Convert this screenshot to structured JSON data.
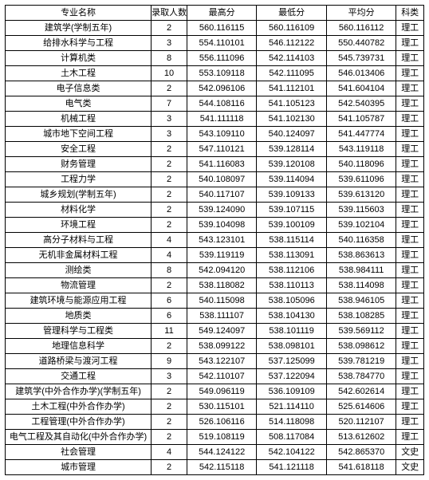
{
  "headers": [
    "专业名称",
    "录取人数",
    "最高分",
    "最低分",
    "平均分",
    "科类"
  ],
  "rows": [
    [
      "建筑学(学制五年)",
      "2",
      "560.116115",
      "560.116109",
      "560.116112",
      "理工"
    ],
    [
      "给排水科学与工程",
      "3",
      "554.110101",
      "546.112122",
      "550.440782",
      "理工"
    ],
    [
      "计算机类",
      "8",
      "556.111096",
      "542.114103",
      "545.739731",
      "理工"
    ],
    [
      "土木工程",
      "10",
      "553.109118",
      "542.111095",
      "546.013406",
      "理工"
    ],
    [
      "电子信息类",
      "2",
      "542.096106",
      "541.112101",
      "541.604104",
      "理工"
    ],
    [
      "电气类",
      "7",
      "544.108116",
      "541.105123",
      "542.540395",
      "理工"
    ],
    [
      "机械工程",
      "3",
      "541.111118",
      "541.102130",
      "541.105787",
      "理工"
    ],
    [
      "城市地下空间工程",
      "3",
      "543.109110",
      "540.124097",
      "541.447774",
      "理工"
    ],
    [
      "安全工程",
      "2",
      "547.110121",
      "539.128114",
      "543.119118",
      "理工"
    ],
    [
      "财务管理",
      "2",
      "541.116083",
      "539.120108",
      "540.118096",
      "理工"
    ],
    [
      "工程力学",
      "2",
      "540.108097",
      "539.114094",
      "539.611096",
      "理工"
    ],
    [
      "城乡规划(学制五年)",
      "2",
      "540.117107",
      "539.109133",
      "539.613120",
      "理工"
    ],
    [
      "材料化学",
      "2",
      "539.124090",
      "539.107115",
      "539.115603",
      "理工"
    ],
    [
      "环境工程",
      "2",
      "539.104098",
      "539.100109",
      "539.102104",
      "理工"
    ],
    [
      "高分子材料与工程",
      "4",
      "543.123101",
      "538.115114",
      "540.116358",
      "理工"
    ],
    [
      "无机非金属材料工程",
      "4",
      "539.119119",
      "538.113091",
      "538.863613",
      "理工"
    ],
    [
      "测绘类",
      "8",
      "542.094120",
      "538.112106",
      "538.984111",
      "理工"
    ],
    [
      "物流管理",
      "2",
      "538.118082",
      "538.110113",
      "538.114098",
      "理工"
    ],
    [
      "建筑环境与能源应用工程",
      "6",
      "540.115098",
      "538.105096",
      "538.946105",
      "理工"
    ],
    [
      "地质类",
      "6",
      "538.111107",
      "538.104130",
      "538.108285",
      "理工"
    ],
    [
      "管理科学与工程类",
      "11",
      "549.124097",
      "538.101119",
      "539.569112",
      "理工"
    ],
    [
      "地理信息科学",
      "2",
      "538.099122",
      "538.098101",
      "538.098612",
      "理工"
    ],
    [
      "道路桥梁与渡河工程",
      "9",
      "543.122107",
      "537.125099",
      "539.781219",
      "理工"
    ],
    [
      "交通工程",
      "3",
      "542.110107",
      "537.122094",
      "538.784770",
      "理工"
    ],
    [
      "建筑学(中外合作办学)(学制五年)",
      "2",
      "549.096119",
      "536.109109",
      "542.602614",
      "理工"
    ],
    [
      "土木工程(中外合作办学)",
      "2",
      "530.115101",
      "521.114110",
      "525.614606",
      "理工"
    ],
    [
      "工程管理(中外合作办学)",
      "2",
      "526.106116",
      "514.118098",
      "520.112107",
      "理工"
    ],
    [
      "电气工程及其自动化(中外合作办学)",
      "2",
      "519.108119",
      "508.117084",
      "513.612602",
      "理工"
    ],
    [
      "社会管理",
      "4",
      "544.124122",
      "542.104122",
      "542.865370",
      "文史"
    ],
    [
      "城市管理",
      "2",
      "542.115118",
      "541.121118",
      "541.618118",
      "文史"
    ]
  ]
}
